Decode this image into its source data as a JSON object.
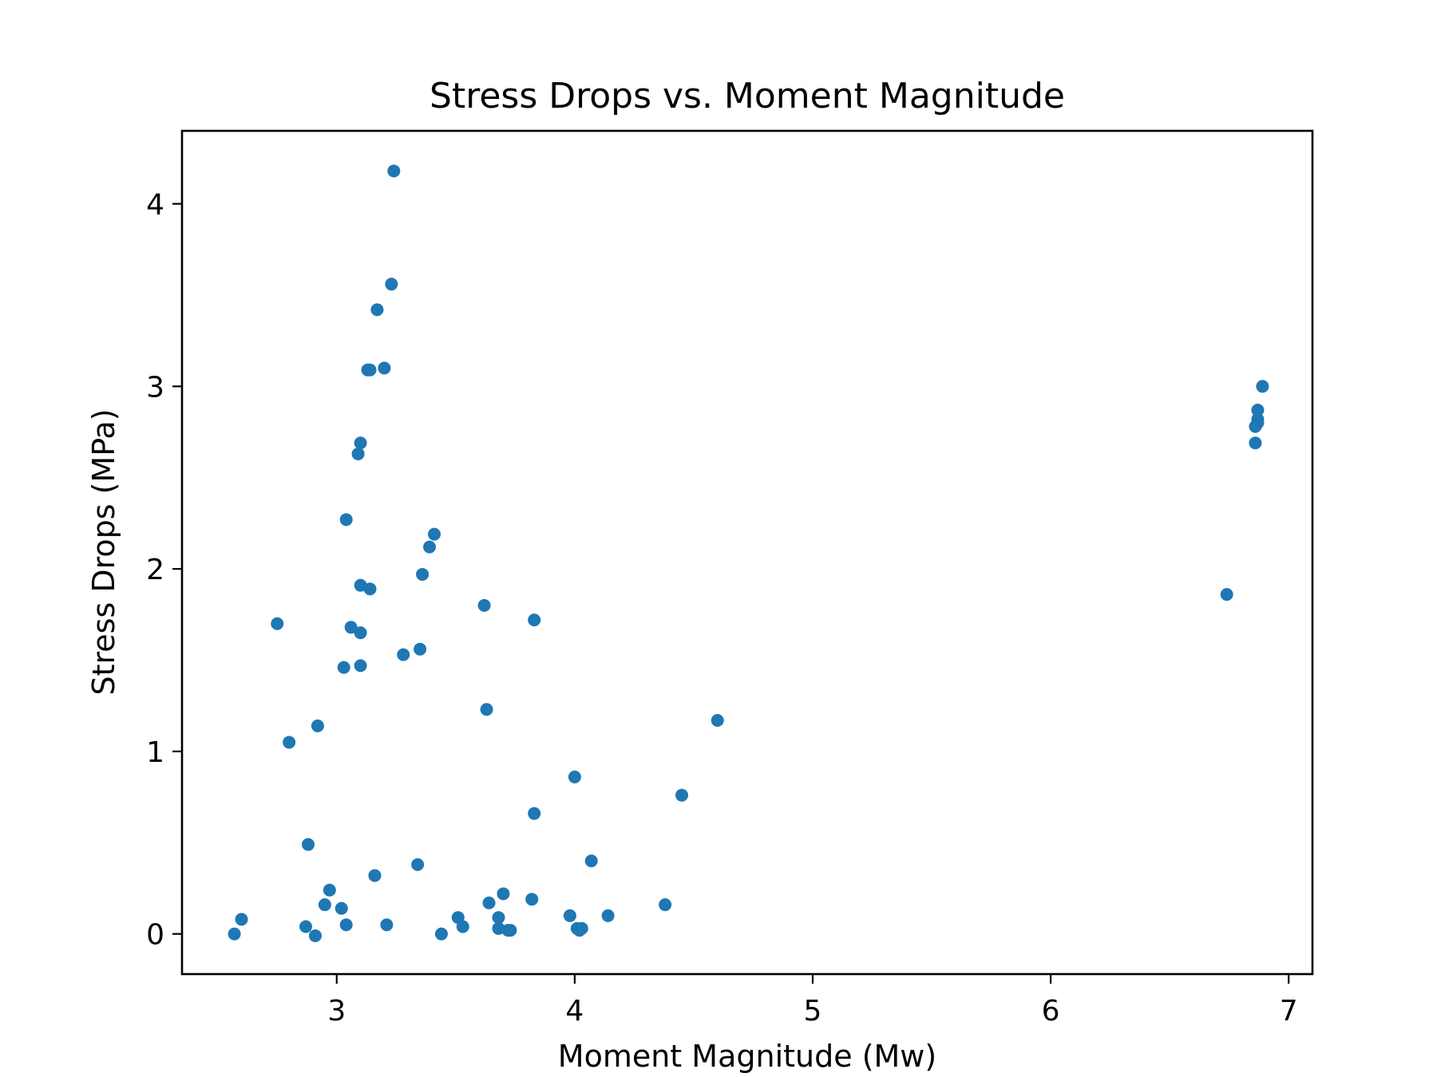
{
  "chart_data": {
    "type": "scatter",
    "title": "Stress Drops vs. Moment Magnitude",
    "xlabel": "Moment Magnitude (Mw)",
    "ylabel": "Stress Drops (MPa)",
    "xlim": [
      2.35,
      7.1
    ],
    "ylim": [
      -0.22,
      4.4
    ],
    "xticks": [
      3,
      4,
      5,
      6,
      7
    ],
    "yticks": [
      0,
      1,
      2,
      3,
      4
    ],
    "grid": false,
    "legend": "none",
    "marker_color": "#1f77b4",
    "series": [
      {
        "x": [
          3.24,
          3.23,
          3.17,
          3.2,
          3.14,
          3.13,
          3.1,
          3.09,
          3.04,
          3.41,
          3.39,
          3.36,
          3.1,
          3.14,
          2.75,
          3.06,
          3.1,
          3.35,
          3.28,
          3.03,
          3.1,
          3.62,
          3.83,
          3.63,
          4.6,
          2.8,
          2.92,
          4.0,
          4.45,
          3.83,
          2.88,
          4.07,
          3.34,
          3.16,
          2.97,
          3.7,
          3.64,
          2.95,
          3.02,
          3.82,
          4.38,
          4.14,
          3.98,
          3.68,
          2.6,
          3.51,
          3.04,
          3.21,
          2.87,
          3.53,
          3.68,
          3.72,
          3.73,
          4.03,
          4.01,
          4.02,
          3.44,
          2.57,
          2.91,
          6.89,
          6.87,
          6.87,
          6.87,
          6.86,
          6.86,
          6.74
        ],
        "y": [
          4.18,
          3.56,
          3.42,
          3.1,
          3.09,
          3.09,
          2.69,
          2.63,
          2.27,
          2.19,
          2.12,
          1.97,
          1.91,
          1.89,
          1.7,
          1.68,
          1.65,
          1.56,
          1.53,
          1.46,
          1.47,
          1.8,
          1.72,
          1.23,
          1.17,
          1.05,
          1.14,
          0.86,
          0.76,
          0.66,
          0.49,
          0.4,
          0.38,
          0.32,
          0.24,
          0.22,
          0.17,
          0.16,
          0.14,
          0.19,
          0.16,
          0.1,
          0.1,
          0.09,
          0.08,
          0.09,
          0.05,
          0.05,
          0.04,
          0.04,
          0.03,
          0.02,
          0.02,
          0.03,
          0.03,
          0.02,
          0.0,
          0.0,
          -0.01,
          3.0,
          2.87,
          2.82,
          2.8,
          2.78,
          2.69,
          1.86
        ]
      }
    ]
  }
}
